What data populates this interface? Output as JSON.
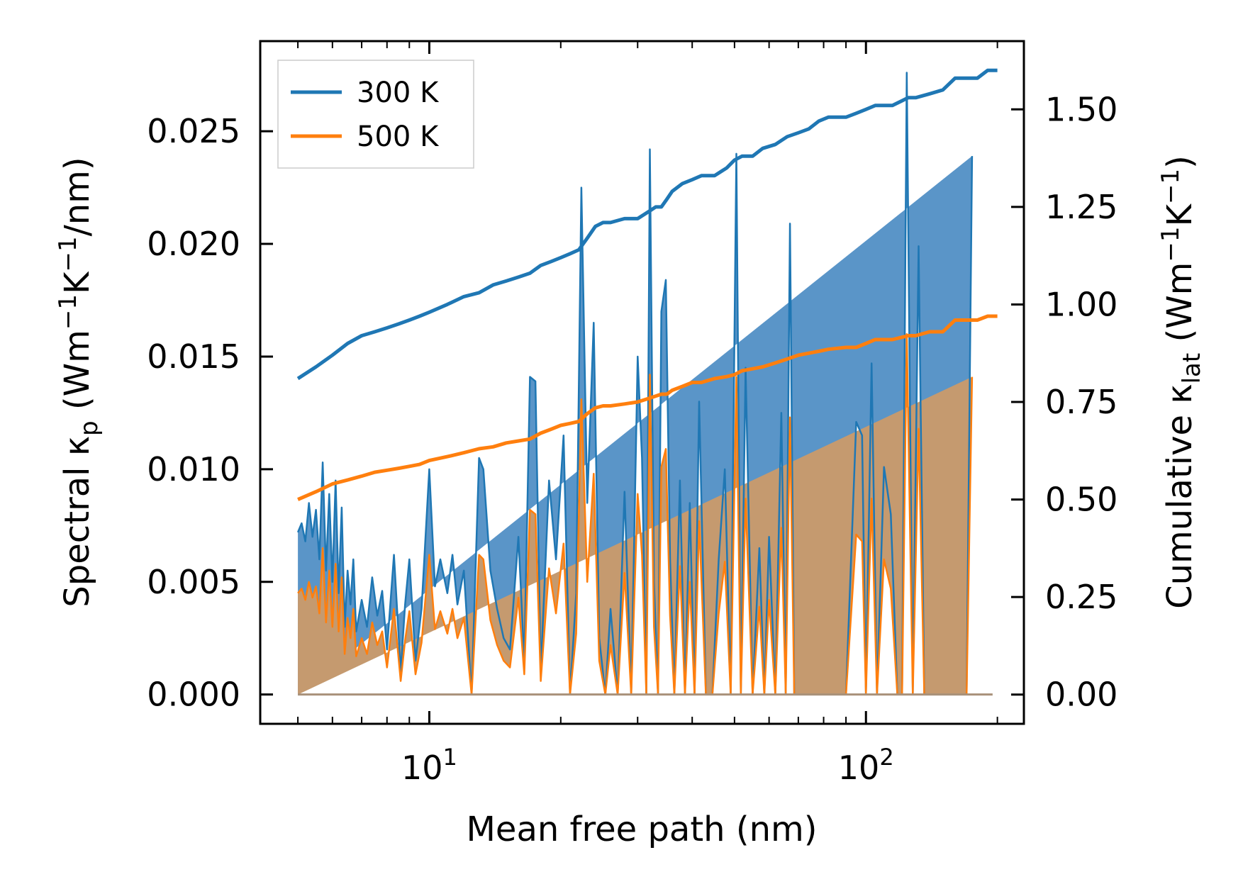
{
  "chart_data": {
    "type": "line",
    "xscale": "log",
    "xlabel": "Mean free path (nm)",
    "ylabel_left": "Spectral κp (Wm−1K−1/nm)",
    "ylabel_right": "Cumulative κlat (Wm−1K−1)",
    "xlim": [
      4.1,
      230
    ],
    "ylim_left": [
      -0.0013,
      0.029
    ],
    "ylim_right": [
      -0.075,
      1.675
    ],
    "x_ticks": [
      {
        "value": 10,
        "base": "10",
        "exp": "1"
      },
      {
        "value": 100,
        "base": "10",
        "exp": "2"
      }
    ],
    "y_left_ticks": [
      {
        "value": 0,
        "label": "0.000"
      },
      {
        "value": 0.005,
        "label": "0.005"
      },
      {
        "value": 0.01,
        "label": "0.010"
      },
      {
        "value": 0.015,
        "label": "0.015"
      },
      {
        "value": 0.02,
        "label": "0.020"
      },
      {
        "value": 0.025,
        "label": "0.025"
      }
    ],
    "y_right_ticks": [
      {
        "value": 0,
        "label": "0.00"
      },
      {
        "value": 0.25,
        "label": "0.25"
      },
      {
        "value": 0.5,
        "label": "0.50"
      },
      {
        "value": 0.75,
        "label": "0.75"
      },
      {
        "value": 1.0,
        "label": "1.00"
      },
      {
        "value": 1.25,
        "label": "1.25"
      },
      {
        "value": 1.5,
        "label": "1.50"
      }
    ],
    "legend": {
      "position": "upper-left",
      "entries": [
        "300 K",
        "500 K"
      ]
    },
    "colors": {
      "blue": "#1f77b4",
      "orange": "#ff7f0e",
      "blue_fill": "#5a95c8",
      "brown_fill": "#c59a6f"
    },
    "spectral_x": [
      5.0,
      5.1,
      5.2,
      5.3,
      5.4,
      5.5,
      5.6,
      5.7,
      5.8,
      5.9,
      6.0,
      6.1,
      6.2,
      6.3,
      6.4,
      6.5,
      6.6,
      6.7,
      6.8,
      7.0,
      7.2,
      7.4,
      7.6,
      7.8,
      8.0,
      8.3,
      8.6,
      8.8,
      9.0,
      9.3,
      9.6,
      10.0,
      10.3,
      10.6,
      11.0,
      11.3,
      11.6,
      12.0,
      12.5,
      13.0,
      13.3,
      13.8,
      14.3,
      14.8,
      15.3,
      16.0,
      16.5,
      17.0,
      17.5,
      18.0,
      18.8,
      19.5,
      20.3,
      21.0,
      21.7,
      22.3,
      23.0,
      23.8,
      24.5,
      25.3,
      26.0,
      27.0,
      28.0,
      29.0,
      30.0,
      30.7,
      31.4,
      32.0,
      32.7,
      33.4,
      34.0,
      34.8,
      35.6,
      36.4,
      37.5,
      38.5,
      39.5,
      40.5,
      41.5,
      43.0,
      44.5,
      46.0,
      47.5,
      49.0,
      50.5,
      51.7,
      53.0,
      55.0,
      57.0,
      58.5,
      60.0,
      62.0,
      64.0,
      65.5,
      67.0,
      68.5,
      70.0,
      72.0,
      74.0,
      75.5,
      77.0,
      79.0,
      81.0,
      85.0,
      90.0,
      95.0,
      98.0,
      100.0,
      103.0,
      106.0,
      110.0,
      114.0,
      118.0,
      121.0,
      124.0,
      128.0,
      132.0,
      136.0,
      140.0,
      145.0,
      150.0,
      155.0,
      160.0,
      165.0,
      170.0,
      175.0,
      180.0,
      185.0,
      190.0,
      195.0
    ],
    "spectral_300K": [
      0.0072,
      0.0076,
      0.0068,
      0.0085,
      0.007,
      0.0082,
      0.006,
      0.0103,
      0.0055,
      0.0089,
      0.005,
      0.0095,
      0.0045,
      0.0083,
      0.003,
      0.0055,
      0.004,
      0.006,
      0.0028,
      0.0042,
      0.003,
      0.0052,
      0.0035,
      0.0046,
      0.002,
      0.0062,
      0.001,
      0.004,
      0.006,
      0.0015,
      0.0038,
      0.01,
      0.0048,
      0.006,
      0.0045,
      0.0062,
      0.004,
      0.0055,
      0.0,
      0.0105,
      0.01,
      0.0055,
      0.0038,
      0.0025,
      0.002,
      0.007,
      0.0015,
      0.0141,
      0.0139,
      0.001,
      0.0095,
      0.006,
      0.0115,
      0.0,
      0.0045,
      0.0225,
      0.0085,
      0.0165,
      0.0025,
      0.0,
      0.0038,
      0.0,
      0.009,
      0.0,
      0.015,
      0.0105,
      0.0,
      0.0242,
      0.005,
      0.0,
      0.017,
      0.0184,
      0.006,
      0.0,
      0.0095,
      0.0,
      0.0085,
      0.0,
      0.013,
      0.0,
      0.0,
      0.006,
      0.01,
      0.0,
      0.024,
      0.0,
      0.0145,
      0.0,
      0.0065,
      0.0,
      0.007,
      0.0,
      0.0125,
      0.0,
      0.0209,
      0.0,
      0.0,
      0.0,
      0.0,
      0.0,
      0.0,
      0.0,
      0.0,
      0.0,
      0.0,
      0.0121,
      0.0115,
      0.0,
      0.0147,
      0.0,
      0.0101,
      0.008,
      0.0,
      0.0,
      0.0276,
      0.0,
      0.0199,
      0.0,
      0.0,
      0.0,
      0.0,
      0.0,
      0.0,
      0.0,
      0.0,
      0.0239
    ],
    "spectral_500K": [
      0.0045,
      0.0047,
      0.0042,
      0.005,
      0.0043,
      0.0048,
      0.0036,
      0.0065,
      0.0032,
      0.0055,
      0.003,
      0.0058,
      0.0028,
      0.0052,
      0.0018,
      0.0034,
      0.0025,
      0.0038,
      0.0017,
      0.0025,
      0.0018,
      0.0032,
      0.0022,
      0.0028,
      0.0012,
      0.0038,
      0.0006,
      0.0024,
      0.0037,
      0.0009,
      0.0023,
      0.0062,
      0.0029,
      0.0037,
      0.0027,
      0.0038,
      0.0025,
      0.0034,
      0.0,
      0.0062,
      0.006,
      0.0033,
      0.0022,
      0.0015,
      0.0012,
      0.0043,
      0.0009,
      0.0082,
      0.008,
      0.0006,
      0.0056,
      0.0036,
      0.0067,
      0.0,
      0.0027,
      0.0131,
      0.005,
      0.0098,
      0.0015,
      0.0,
      0.0022,
      0.0,
      0.0054,
      0.0,
      0.0089,
      0.0062,
      0.0,
      0.0142,
      0.003,
      0.0,
      0.0101,
      0.0109,
      0.0035,
      0.0,
      0.0057,
      0.0,
      0.005,
      0.0,
      0.0077,
      0.0,
      0.0,
      0.0036,
      0.0059,
      0.0,
      0.0141,
      0.0,
      0.0087,
      0.0,
      0.0039,
      0.0,
      0.0042,
      0.0,
      0.0074,
      0.0,
      0.0123,
      0.0,
      0.0,
      0.0,
      0.0,
      0.0,
      0.0,
      0.0,
      0.0,
      0.0,
      0.0,
      0.0071,
      0.0068,
      0.0,
      0.0087,
      0.0,
      0.006,
      0.0047,
      0.0,
      0.0,
      0.016,
      0.0,
      0.0118,
      0.0,
      0.0,
      0.0,
      0.0,
      0.0,
      0.0,
      0.0,
      0.0,
      0.0141
    ],
    "cumulative_x": [
      5.0,
      5.5,
      6.0,
      6.5,
      7.0,
      7.5,
      8.0,
      8.5,
      9.0,
      9.5,
      10.0,
      11.0,
      12.0,
      13.0,
      14.0,
      15.0,
      16.0,
      17.0,
      18.0,
      19.0,
      20.0,
      21.0,
      22.0,
      23.0,
      24.0,
      25.0,
      26.0,
      28.0,
      30.0,
      32.0,
      33.0,
      34.0,
      35.0,
      36.0,
      38.0,
      40.0,
      42.0,
      45.0,
      48.0,
      50.0,
      52.0,
      55.0,
      58.0,
      62.0,
      66.0,
      70.0,
      74.0,
      78.0,
      82.0,
      90.0,
      95.0,
      100.0,
      105.0,
      115.0,
      125.0,
      130.0,
      140.0,
      150.0,
      160.0,
      170.0,
      180.0,
      190.0,
      200.0
    ],
    "cumulative_300K": [
      0.81,
      0.84,
      0.87,
      0.9,
      0.92,
      0.93,
      0.94,
      0.95,
      0.96,
      0.97,
      0.98,
      1.0,
      1.02,
      1.03,
      1.05,
      1.06,
      1.07,
      1.08,
      1.1,
      1.11,
      1.12,
      1.13,
      1.14,
      1.17,
      1.2,
      1.21,
      1.21,
      1.22,
      1.22,
      1.24,
      1.25,
      1.25,
      1.27,
      1.29,
      1.31,
      1.32,
      1.33,
      1.33,
      1.35,
      1.37,
      1.38,
      1.38,
      1.4,
      1.41,
      1.43,
      1.44,
      1.45,
      1.47,
      1.48,
      1.48,
      1.49,
      1.5,
      1.51,
      1.51,
      1.53,
      1.53,
      1.54,
      1.55,
      1.58,
      1.58,
      1.58,
      1.6,
      1.6
    ],
    "cumulative_500K": [
      0.5,
      0.52,
      0.54,
      0.55,
      0.56,
      0.57,
      0.575,
      0.58,
      0.585,
      0.59,
      0.6,
      0.61,
      0.62,
      0.63,
      0.635,
      0.645,
      0.65,
      0.655,
      0.67,
      0.68,
      0.69,
      0.695,
      0.7,
      0.72,
      0.735,
      0.74,
      0.74,
      0.745,
      0.75,
      0.76,
      0.765,
      0.77,
      0.77,
      0.78,
      0.79,
      0.8,
      0.8,
      0.81,
      0.815,
      0.82,
      0.83,
      0.835,
      0.84,
      0.85,
      0.86,
      0.87,
      0.875,
      0.88,
      0.885,
      0.89,
      0.89,
      0.9,
      0.91,
      0.91,
      0.92,
      0.92,
      0.93,
      0.93,
      0.96,
      0.96,
      0.96,
      0.97,
      0.97
    ]
  }
}
